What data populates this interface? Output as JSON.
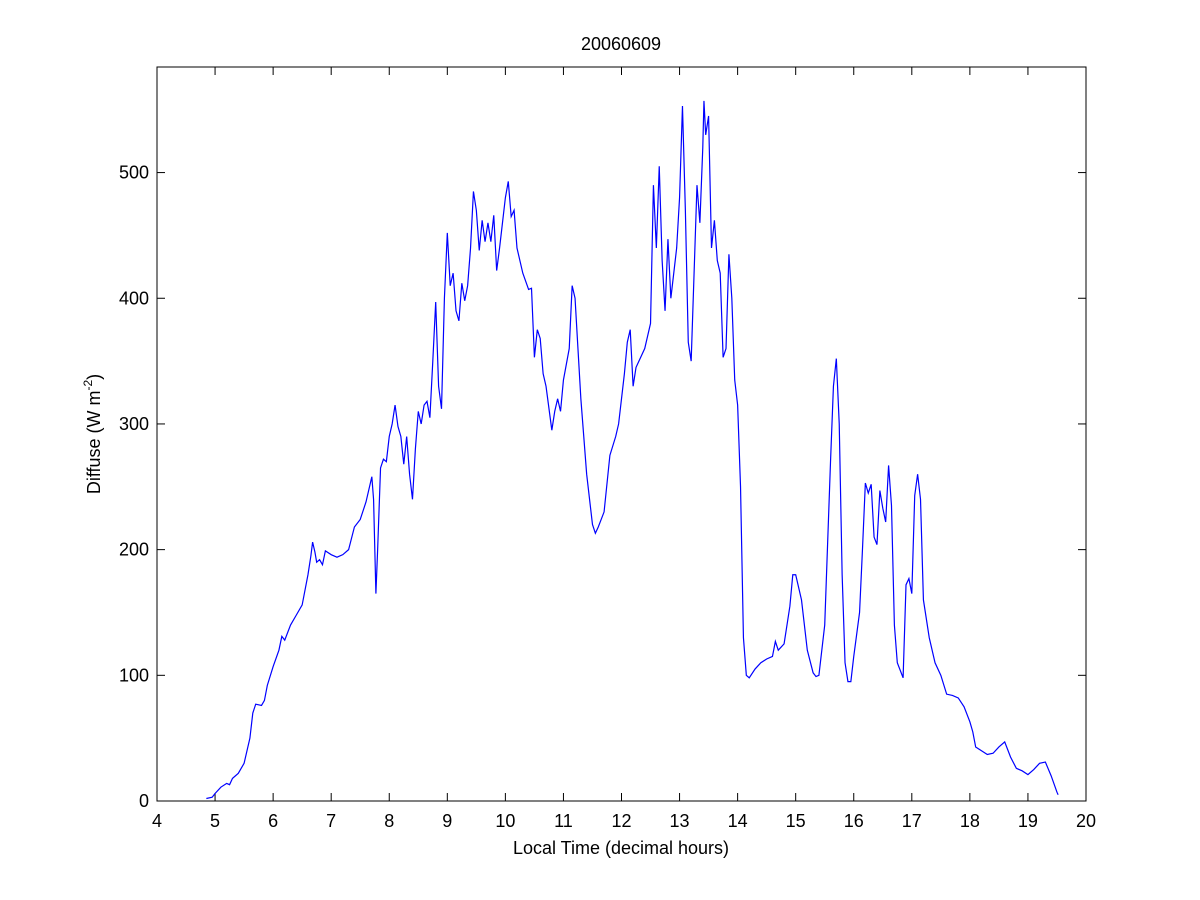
{
  "chart_data": {
    "type": "line",
    "title": "20060609",
    "x_label": "Local Time (decimal hours)",
    "y_label": {
      "text": "Diffuse (W m",
      "superscript": "-2",
      "after": ")"
    },
    "color": "#0000ff",
    "xlim": [
      4,
      20
    ],
    "ylim": [
      0,
      584
    ],
    "xticks": [
      4,
      5,
      6,
      7,
      8,
      9,
      10,
      11,
      12,
      13,
      14,
      15,
      16,
      17,
      18,
      19,
      20
    ],
    "yticks": [
      0,
      100,
      200,
      300,
      400,
      500
    ],
    "x": [
      4.85,
      4.95,
      5.0,
      5.1,
      5.2,
      5.25,
      5.3,
      5.4,
      5.5,
      5.6,
      5.65,
      5.7,
      5.8,
      5.85,
      5.9,
      6.0,
      6.1,
      6.15,
      6.2,
      6.3,
      6.4,
      6.5,
      6.6,
      6.65,
      6.68,
      6.72,
      6.75,
      6.8,
      6.85,
      6.9,
      7.0,
      7.1,
      7.2,
      7.3,
      7.4,
      7.5,
      7.6,
      7.7,
      7.73,
      7.77,
      7.8,
      7.85,
      7.9,
      7.95,
      8.0,
      8.05,
      8.1,
      8.15,
      8.2,
      8.25,
      8.3,
      8.35,
      8.4,
      8.45,
      8.5,
      8.55,
      8.6,
      8.65,
      8.7,
      8.75,
      8.8,
      8.85,
      8.9,
      8.95,
      9.0,
      9.05,
      9.1,
      9.15,
      9.2,
      9.25,
      9.3,
      9.35,
      9.4,
      9.45,
      9.5,
      9.55,
      9.6,
      9.65,
      9.7,
      9.75,
      9.8,
      9.85,
      9.9,
      10.0,
      10.05,
      10.1,
      10.15,
      10.2,
      10.3,
      10.4,
      10.45,
      10.5,
      10.55,
      10.6,
      10.65,
      10.7,
      10.8,
      10.85,
      10.9,
      10.95,
      11.0,
      11.1,
      11.15,
      11.2,
      11.25,
      11.3,
      11.4,
      11.5,
      11.55,
      11.6,
      11.7,
      11.8,
      11.9,
      11.95,
      12.0,
      12.05,
      12.1,
      12.15,
      12.2,
      12.25,
      12.3,
      12.4,
      12.5,
      12.55,
      12.6,
      12.65,
      12.7,
      12.75,
      12.8,
      12.85,
      12.9,
      12.95,
      13.0,
      13.05,
      13.1,
      13.15,
      13.2,
      13.25,
      13.3,
      13.35,
      13.4,
      13.42,
      13.45,
      13.5,
      13.55,
      13.6,
      13.65,
      13.7,
      13.75,
      13.8,
      13.85,
      13.9,
      13.95,
      14.0,
      14.05,
      14.1,
      14.15,
      14.2,
      14.3,
      14.4,
      14.5,
      14.6,
      14.65,
      14.7,
      14.8,
      14.85,
      14.9,
      14.95,
      15.0,
      15.1,
      15.2,
      15.3,
      15.35,
      15.4,
      15.5,
      15.6,
      15.65,
      15.7,
      15.75,
      15.8,
      15.85,
      15.9,
      15.95,
      16.0,
      16.1,
      16.15,
      16.2,
      16.25,
      16.3,
      16.35,
      16.4,
      16.45,
      16.5,
      16.55,
      16.6,
      16.65,
      16.7,
      16.75,
      16.85,
      16.9,
      16.95,
      17.0,
      17.05,
      17.1,
      17.15,
      17.2,
      17.3,
      17.4,
      17.5,
      17.6,
      17.7,
      17.8,
      17.9,
      18.0,
      18.05,
      18.1,
      18.2,
      18.3,
      18.4,
      18.5,
      18.6,
      18.7,
      18.8,
      18.9,
      19.0,
      19.1,
      19.2,
      19.3,
      19.4,
      19.5,
      19.52
    ],
    "values": [
      2,
      3,
      6,
      11,
      14,
      13,
      18,
      22,
      30,
      50,
      70,
      77,
      76,
      80,
      92,
      107,
      120,
      131,
      128,
      140,
      148,
      156,
      180,
      195,
      206,
      198,
      190,
      192,
      188,
      199,
      196,
      194,
      196,
      200,
      218,
      224,
      238,
      258,
      240,
      165,
      200,
      265,
      272,
      270,
      290,
      300,
      315,
      298,
      290,
      268,
      290,
      260,
      240,
      280,
      310,
      300,
      315,
      318,
      305,
      350,
      397,
      330,
      312,
      400,
      452,
      410,
      420,
      390,
      382,
      412,
      398,
      410,
      440,
      485,
      470,
      438,
      462,
      445,
      460,
      445,
      466,
      422,
      440,
      480,
      493,
      465,
      470,
      440,
      420,
      407,
      408,
      353,
      375,
      368,
      340,
      330,
      295,
      310,
      320,
      310,
      335,
      360,
      410,
      400,
      360,
      320,
      260,
      220,
      213,
      218,
      230,
      275,
      290,
      300,
      320,
      340,
      365,
      375,
      330,
      345,
      350,
      360,
      380,
      490,
      440,
      505,
      430,
      390,
      447,
      400,
      420,
      440,
      480,
      553,
      470,
      365,
      350,
      420,
      490,
      460,
      520,
      557,
      530,
      545,
      440,
      462,
      430,
      420,
      353,
      360,
      435,
      400,
      335,
      315,
      250,
      130,
      100,
      98,
      105,
      110,
      113,
      115,
      127,
      120,
      125,
      140,
      155,
      180,
      180,
      160,
      120,
      102,
      99,
      100,
      140,
      270,
      330,
      352,
      300,
      180,
      110,
      95,
      95,
      115,
      150,
      200,
      253,
      245,
      252,
      210,
      204,
      247,
      233,
      222,
      267,
      235,
      140,
      110,
      98,
      172,
      177,
      165,
      243,
      260,
      240,
      160,
      130,
      110,
      100,
      85,
      84,
      82,
      75,
      63,
      55,
      43,
      40,
      37,
      38,
      43,
      47,
      35,
      26,
      24,
      21,
      25,
      30,
      31,
      20,
      7,
      5
    ]
  }
}
